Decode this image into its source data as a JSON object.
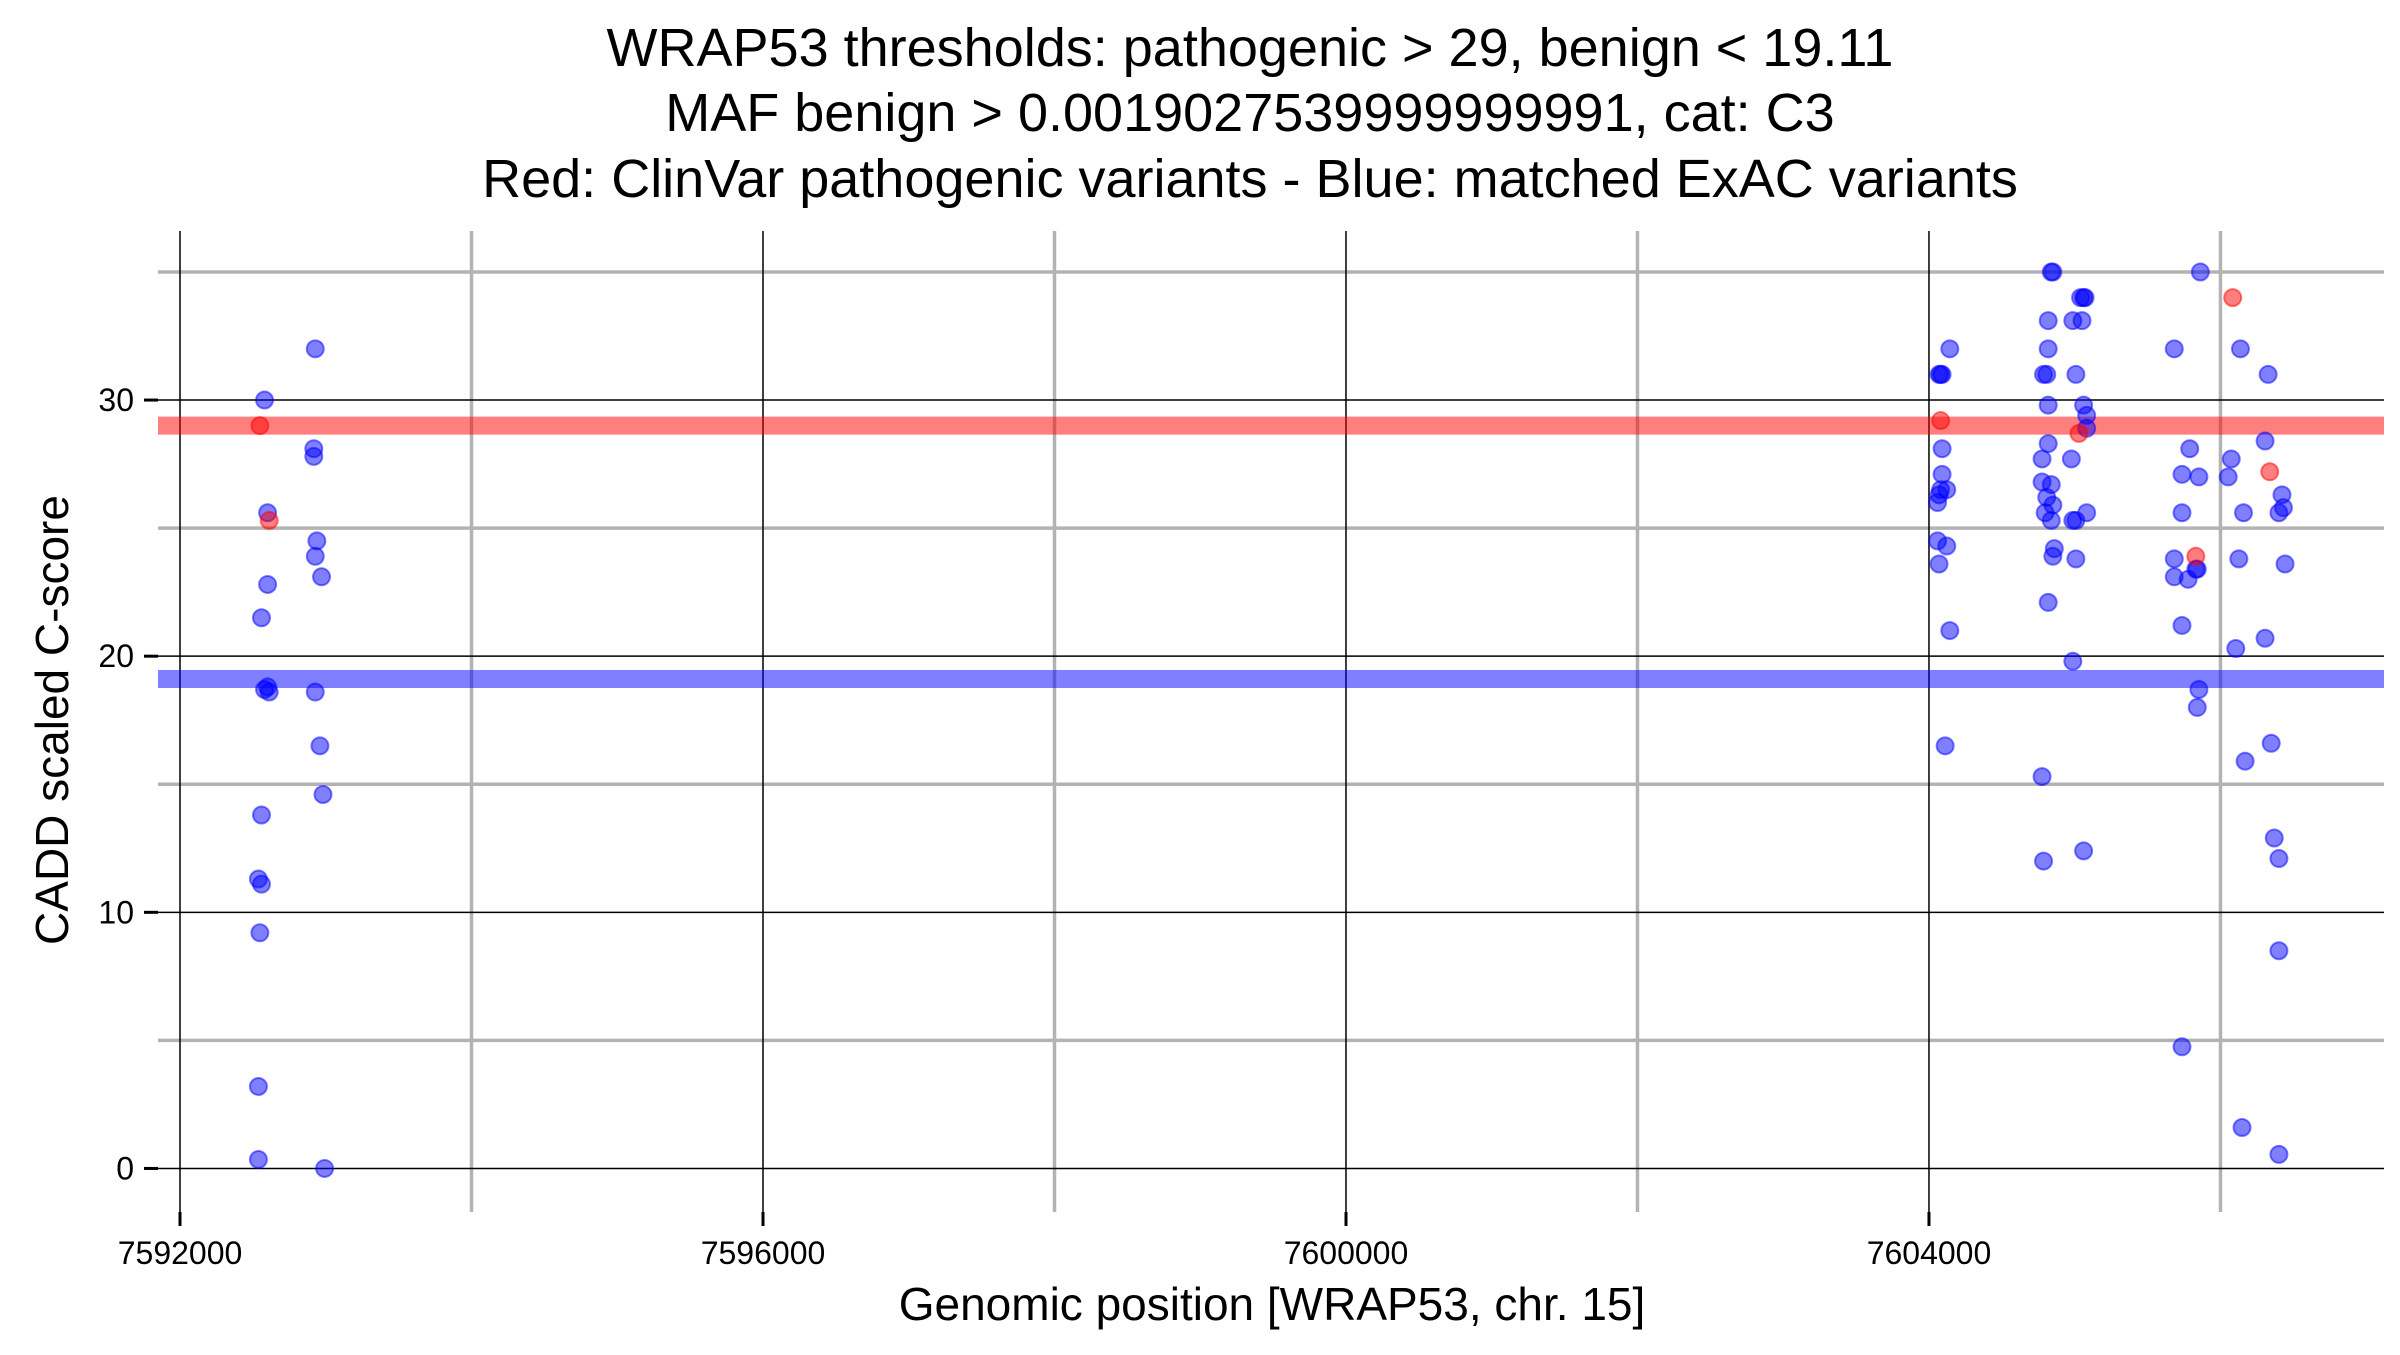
{
  "chart_data": {
    "type": "scatter",
    "title_lines": [
      "WRAP53 thresholds: pathogenic > 29, benign < 19.11",
      "MAF benign > 0.0019027539999999991, cat: C3",
      "Red: ClinVar pathogenic variants - Blue: matched ExAC variants"
    ],
    "xlabel": "Genomic position [WRAP53, chr. 15]",
    "ylabel": "CADD scaled C-score",
    "xlim": [
      7591849,
      7607122
    ],
    "ylim": [
      -1.7,
      36.6
    ],
    "x_ticks": [
      7592000,
      7596000,
      7600000,
      7604000
    ],
    "x_tick_labels": [
      "7592000",
      "7596000",
      "7600000",
      "7604000"
    ],
    "x_minor": [
      7594000,
      7598000,
      7602000,
      7606000
    ],
    "y_ticks": [
      0,
      10,
      20,
      30
    ],
    "y_tick_labels": [
      "0",
      "10",
      "20",
      "30"
    ],
    "y_minor": [
      5,
      15,
      25,
      35
    ],
    "grid": true,
    "thresholds": [
      {
        "name": "pathogenic",
        "value": 29,
        "color": "#ff0000"
      },
      {
        "name": "benign",
        "value": 19.11,
        "color": "#0000ff"
      }
    ],
    "series": [
      {
        "name": "ClinVar pathogenic variants",
        "color": "#ff0000",
        "points": [
          [
            7592548,
            29.0
          ],
          [
            7592612,
            25.3
          ],
          [
            7604080,
            29.2
          ],
          [
            7605029,
            28.7
          ],
          [
            7605831,
            23.9
          ],
          [
            7606084,
            34.0
          ],
          [
            7606338,
            27.2
          ]
        ]
      },
      {
        "name": "matched ExAC variants",
        "color": "#0000ff",
        "points": [
          [
            7592580,
            30.0
          ],
          [
            7592601,
            25.6
          ],
          [
            7592601,
            22.8
          ],
          [
            7592559,
            21.5
          ],
          [
            7592601,
            18.8
          ],
          [
            7592612,
            18.6
          ],
          [
            7592580,
            18.7
          ],
          [
            7592559,
            13.8
          ],
          [
            7592538,
            11.3
          ],
          [
            7592559,
            11.1
          ],
          [
            7592548,
            9.2
          ],
          [
            7592538,
            3.2
          ],
          [
            7592538,
            0.35
          ],
          [
            7592928,
            32.0
          ],
          [
            7592918,
            28.1
          ],
          [
            7592918,
            27.8
          ],
          [
            7592939,
            24.5
          ],
          [
            7592928,
            23.9
          ],
          [
            7592971,
            23.1
          ],
          [
            7592928,
            18.6
          ],
          [
            7592960,
            16.5
          ],
          [
            7592981,
            14.6
          ],
          [
            7592992,
            0.0
          ],
          [
            7604069,
            31.0
          ],
          [
            7604090,
            31.0
          ],
          [
            7604080,
            31.0
          ],
          [
            7604143,
            32.0
          ],
          [
            7604090,
            28.1
          ],
          [
            7604090,
            27.1
          ],
          [
            7604080,
            26.5
          ],
          [
            7604122,
            26.5
          ],
          [
            7604069,
            26.3
          ],
          [
            7604059,
            26.0
          ],
          [
            7604059,
            24.5
          ],
          [
            7604122,
            24.3
          ],
          [
            7604069,
            23.6
          ],
          [
            7604143,
            21.0
          ],
          [
            7604111,
            16.5
          ],
          [
            7604839,
            35.0
          ],
          [
            7604850,
            35.0
          ],
          [
            7604818,
            33.1
          ],
          [
            7604818,
            32.0
          ],
          [
            7604786,
            31.0
          ],
          [
            7604808,
            31.0
          ],
          [
            7604818,
            29.8
          ],
          [
            7604818,
            28.3
          ],
          [
            7604776,
            27.7
          ],
          [
            7604839,
            26.7
          ],
          [
            7604776,
            26.8
          ],
          [
            7604808,
            26.2
          ],
          [
            7604850,
            25.9
          ],
          [
            7604797,
            25.6
          ],
          [
            7604839,
            25.3
          ],
          [
            7604860,
            24.2
          ],
          [
            7604850,
            23.9
          ],
          [
            7604818,
            22.1
          ],
          [
            7604776,
            15.3
          ],
          [
            7604786,
            12.0
          ],
          [
            7605040,
            34.0
          ],
          [
            7605071,
            34.0
          ],
          [
            7605061,
            34.0
          ],
          [
            7604987,
            33.1
          ],
          [
            7605050,
            33.1
          ],
          [
            7605008,
            31.0
          ],
          [
            7605061,
            29.8
          ],
          [
            7605082,
            29.4
          ],
          [
            7605082,
            28.9
          ],
          [
            7604977,
            27.7
          ],
          [
            7605008,
            25.3
          ],
          [
            7604987,
            25.3
          ],
          [
            7605082,
            25.6
          ],
          [
            7605008,
            23.8
          ],
          [
            7604987,
            19.8
          ],
          [
            7605061,
            12.4
          ],
          [
            7605862,
            35.0
          ],
          [
            7605683,
            32.0
          ],
          [
            7605789,
            28.1
          ],
          [
            7605736,
            27.1
          ],
          [
            7605852,
            27.0
          ],
          [
            7605736,
            25.6
          ],
          [
            7605683,
            23.8
          ],
          [
            7605683,
            23.1
          ],
          [
            7605778,
            23.0
          ],
          [
            7605831,
            23.4
          ],
          [
            7605841,
            23.4
          ],
          [
            7605736,
            21.2
          ],
          [
            7605852,
            18.7
          ],
          [
            7605841,
            18.0
          ],
          [
            7605736,
            4.75
          ],
          [
            7606137,
            32.0
          ],
          [
            7606327,
            31.0
          ],
          [
            7606306,
            28.4
          ],
          [
            7606074,
            27.7
          ],
          [
            7606053,
            27.0
          ],
          [
            7606422,
            26.3
          ],
          [
            7606432,
            25.8
          ],
          [
            7606401,
            25.6
          ],
          [
            7606158,
            25.6
          ],
          [
            7606126,
            23.8
          ],
          [
            7606443,
            23.6
          ],
          [
            7606306,
            20.7
          ],
          [
            7606105,
            20.3
          ],
          [
            7606169,
            15.9
          ],
          [
            7606348,
            16.6
          ],
          [
            7606369,
            12.9
          ],
          [
            7606401,
            12.1
          ],
          [
            7606401,
            8.5
          ],
          [
            7606148,
            1.6
          ],
          [
            7606401,
            0.55
          ]
        ]
      }
    ]
  }
}
